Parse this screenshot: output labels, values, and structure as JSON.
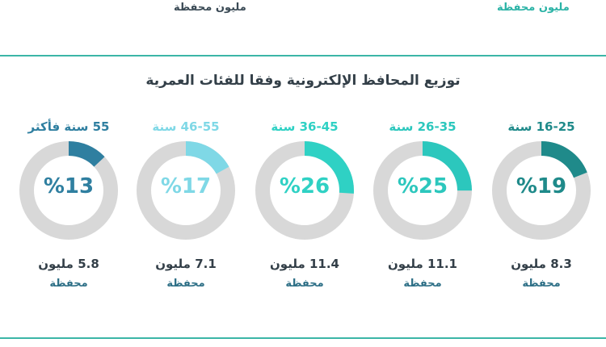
{
  "header": {
    "left_unit": "مليون محفظة",
    "right_unit": "مليون محفظة"
  },
  "chart_data": {
    "type": "pie",
    "title": "توزيع المحافظ الإلكترونية وفقا للفئات العمرية",
    "categories": [
      "16-25 سنة",
      "26-35 سنة",
      "36-45 سنة",
      "46-55 سنة",
      "55 سنة فأكثر"
    ],
    "values": [
      19,
      25,
      26,
      17,
      13
    ],
    "value_labels": [
      "%19",
      "%25",
      "%26",
      "%17",
      "%13"
    ],
    "counts": [
      "8.3 مليون",
      "11.1 مليون",
      "11.4 مليون",
      "7.1 مليون",
      "5.8 مليون"
    ],
    "unit_label": "محفظة",
    "colors": [
      "#1f8a8a",
      "#2cc7bd",
      "#2fd1c4",
      "#7fd8e6",
      "#2f7fa0"
    ],
    "track_color": "#d8d8d8"
  }
}
